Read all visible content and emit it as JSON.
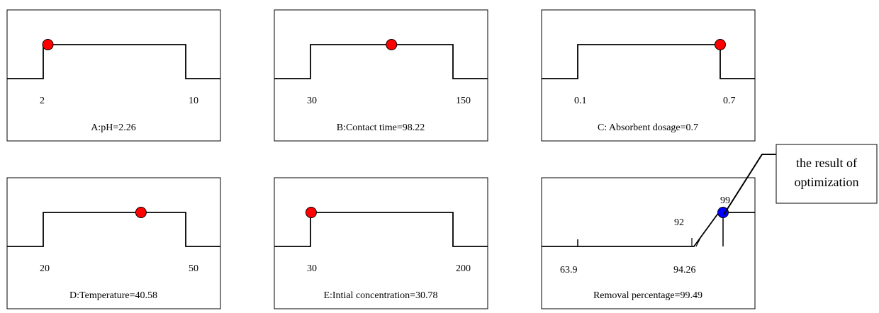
{
  "colors": {
    "factor_marker": "#ff0000",
    "response_marker": "#0000ff",
    "line": "#000000"
  },
  "chart_data": [
    {
      "type": "line",
      "title": "A:pH=2.26",
      "range": [
        2,
        10
      ],
      "tick_labels": [
        "2",
        "10"
      ],
      "value": 2.26,
      "marker": "factor"
    },
    {
      "type": "line",
      "title": "B:Contact time=98.22",
      "range": [
        30,
        150
      ],
      "tick_labels": [
        "30",
        "150"
      ],
      "value": 98.22,
      "marker": "factor"
    },
    {
      "type": "line",
      "title": "C: Absorbent dosage=0.7",
      "range": [
        0.1,
        0.7
      ],
      "tick_labels": [
        "0.1",
        "0.7"
      ],
      "value": 0.7,
      "marker": "factor"
    },
    {
      "type": "line",
      "title": "D:Temperature=40.58",
      "range": [
        20,
        50
      ],
      "tick_labels": [
        "20",
        "50"
      ],
      "value": 40.58,
      "marker": "factor"
    },
    {
      "type": "line",
      "title": "E:Intial concentration=30.78",
      "range": [
        30,
        200
      ],
      "tick_labels": [
        "30",
        "200"
      ],
      "value": 30.78,
      "marker": "factor"
    },
    {
      "type": "line",
      "title": "Removal percentage=99.49",
      "range": [
        63.9,
        99.49
      ],
      "tick_labels": [
        "63.9",
        "94.26"
      ],
      "ramp": {
        "start": 92,
        "end": 99
      },
      "annotations": [
        "92",
        "99"
      ],
      "value": 99.49,
      "marker": "response"
    }
  ],
  "callout": {
    "line1": "the result of",
    "line2": "optimization"
  }
}
